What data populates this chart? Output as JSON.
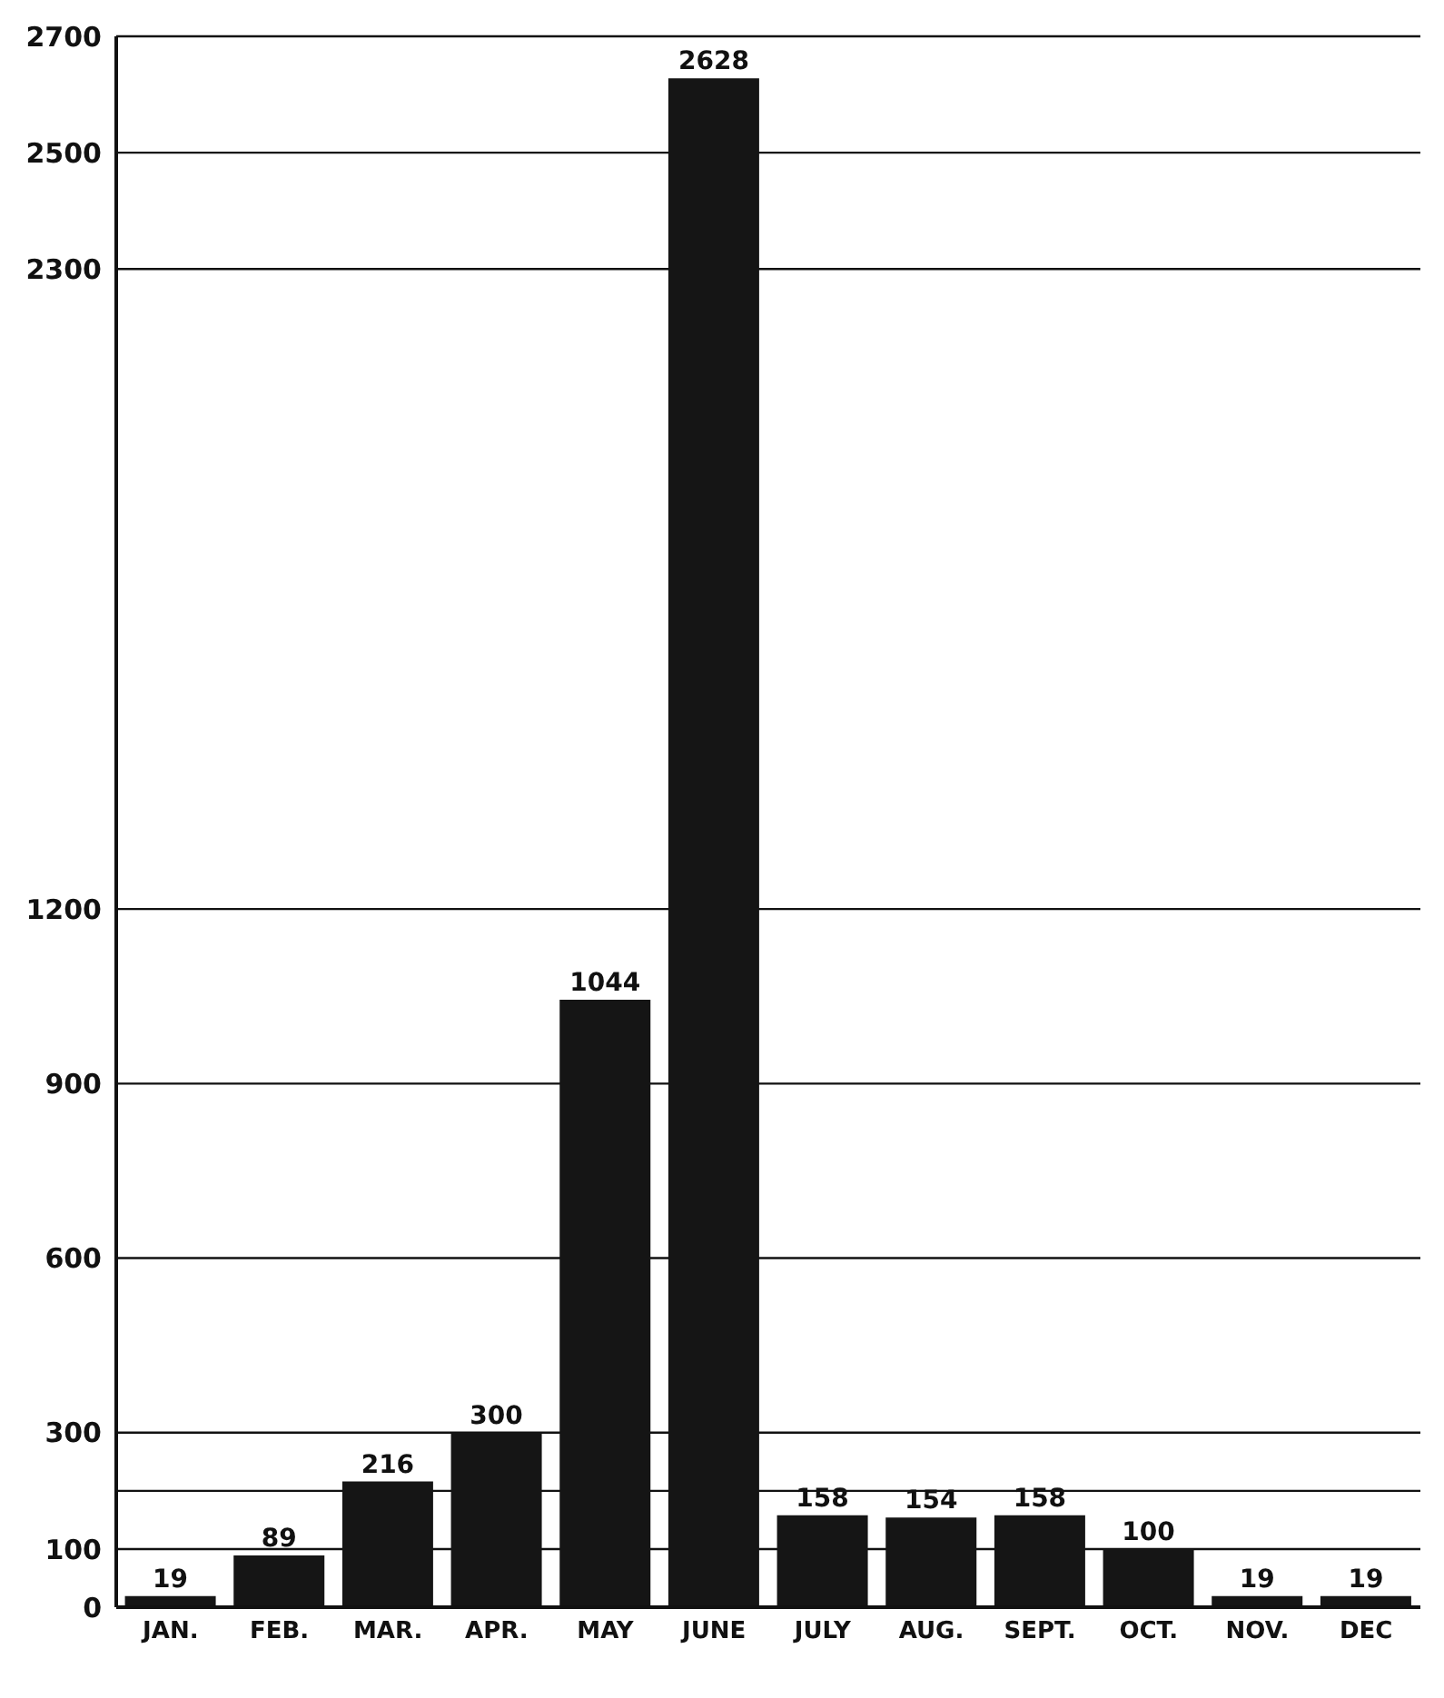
{
  "chart_data": {
    "type": "bar",
    "categories": [
      "JAN.",
      "FEB.",
      "MAR.",
      "APR.",
      "MAY",
      "JUNE",
      "JULY",
      "AUG.",
      "SEPT.",
      "OCT.",
      "NOV.",
      "DEC"
    ],
    "values": [
      19,
      89,
      216,
      300,
      1044,
      2628,
      158,
      154,
      158,
      100,
      19,
      19
    ],
    "color": "#151515",
    "ylim": [
      0,
      2700
    ],
    "yticks": [
      0,
      100,
      {
        "value": 200,
        "label": null
      },
      300,
      600,
      900,
      1200,
      2300,
      2500,
      2700
    ],
    "grid": "y",
    "data_labels": true
  }
}
